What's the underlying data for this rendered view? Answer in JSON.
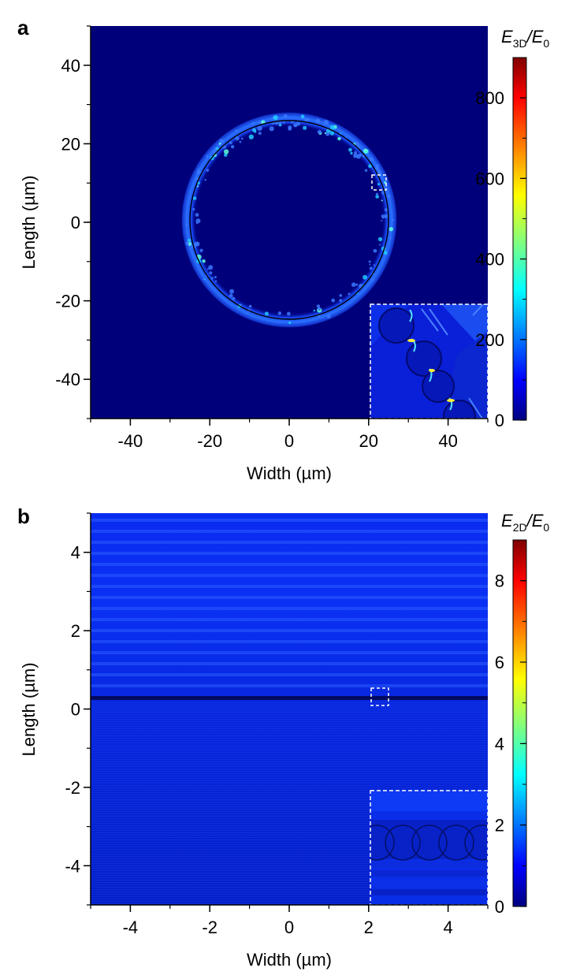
{
  "chart_data": [
    {
      "panel": "a",
      "type": "heatmap",
      "xlabel": "Width (µm)",
      "ylabel": "Length (µm)",
      "xlim": [
        -50,
        50
      ],
      "ylim": [
        -50,
        50
      ],
      "xticks": [
        -40,
        -20,
        0,
        20,
        40
      ],
      "yticks": [
        -40,
        -20,
        0,
        20,
        40
      ],
      "colorbar": {
        "title_main": "E",
        "title_sub": "3D",
        "title_sep": "/E",
        "title_sub2": "0",
        "range": [
          0,
          900
        ],
        "ticks": [
          0,
          200,
          400,
          600,
          800
        ]
      },
      "ring": {
        "center": [
          0,
          0
        ],
        "radius": 25
      },
      "highlight_box": {
        "x": [
          21,
          25
        ],
        "y": [
          8,
          12
        ]
      },
      "inset": "zoomed field of microspheres on ring"
    },
    {
      "panel": "b",
      "type": "heatmap",
      "xlabel": "Width (µm)",
      "ylabel": "Length (µm)",
      "xlim": [
        -5,
        5
      ],
      "ylim": [
        -5,
        5
      ],
      "xticks": [
        -4,
        -2,
        0,
        2,
        4
      ],
      "yticks": [
        -4,
        -2,
        0,
        2,
        4
      ],
      "colorbar": {
        "title_main": "E",
        "title_sub": "2D",
        "title_sep": "/E",
        "title_sub2": "0",
        "range": [
          0,
          9
        ],
        "ticks": [
          0,
          2,
          4,
          6,
          8
        ]
      },
      "interface_line_y": 0.2,
      "highlight_box": {
        "x": [
          2.05,
          2.5
        ],
        "y": [
          -0.2,
          0.45
        ]
      },
      "inset": "zoomed field of microspheres at interface"
    }
  ],
  "panels": {
    "a": {
      "letter": "a"
    },
    "b": {
      "letter": "b"
    }
  },
  "colors": {
    "background_field": "#00007a",
    "ring_glow": "#1a50ff",
    "ring_line": "#000000",
    "colorbar_stops": [
      "#00007f",
      "#0000ff",
      "#00ffff",
      "#ffff00",
      "#ff0000",
      "#7f0000"
    ]
  }
}
